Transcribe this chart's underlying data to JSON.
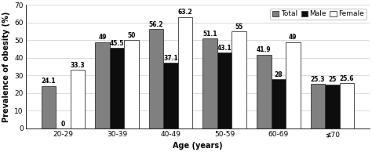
{
  "categories": [
    "20-29",
    "30-39",
    "40-49",
    "50-59",
    "60-69",
    "≰70"
  ],
  "total": [
    24.1,
    49.0,
    56.2,
    51.1,
    41.9,
    25.3
  ],
  "male": [
    0.0,
    45.5,
    37.1,
    43.1,
    28.0,
    25.0
  ],
  "female": [
    33.3,
    50.0,
    63.2,
    55.0,
    49.0,
    25.6
  ],
  "colors": {
    "Total": "#808080",
    "Male": "#0d0d0d",
    "Female": "#ffffff"
  },
  "legend_labels": [
    "Total",
    "Male",
    "Female"
  ],
  "xlabel": "Age (years)",
  "ylabel": "Prevalence of obesity (%)",
  "ylim": [
    0,
    70
  ],
  "yticks": [
    0,
    10,
    20,
    30,
    40,
    50,
    60,
    70
  ],
  "bar_width": 0.27,
  "edgecolor": "#333333",
  "axis_fontsize": 7,
  "tick_fontsize": 6.5,
  "label_fontsize": 5.5
}
